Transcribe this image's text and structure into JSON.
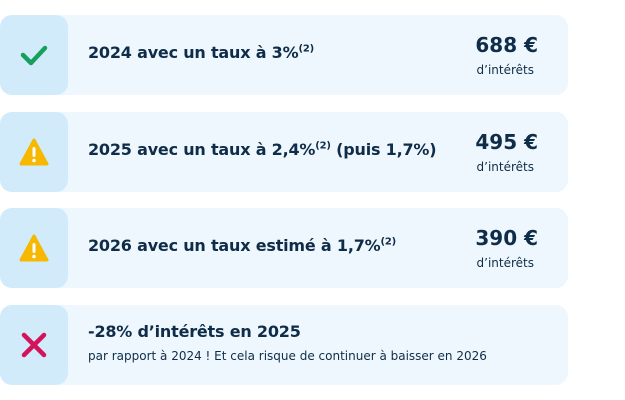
{
  "rows": [
    {
      "title": "2024 avec un taux à 3%",
      "note": "(2)",
      "amount": "688 €",
      "amount_label": "d’intérêts"
    },
    {
      "title": "2025 avec un taux à 2,4%",
      "note": "(2)",
      "suffix": " (puis 1,7%)",
      "amount": "495 €",
      "amount_label": "d’intérêts"
    },
    {
      "title": "2026 avec un taux estimé à 1,7%",
      "note": "(2)",
      "amount": "390 €",
      "amount_label": "d’intérêts"
    },
    {
      "title": "-28% d’intérêts en 2025",
      "subtitle": "par rapport à 2024 ! Et cela risque de continuer à baisser en 2026"
    }
  ]
}
